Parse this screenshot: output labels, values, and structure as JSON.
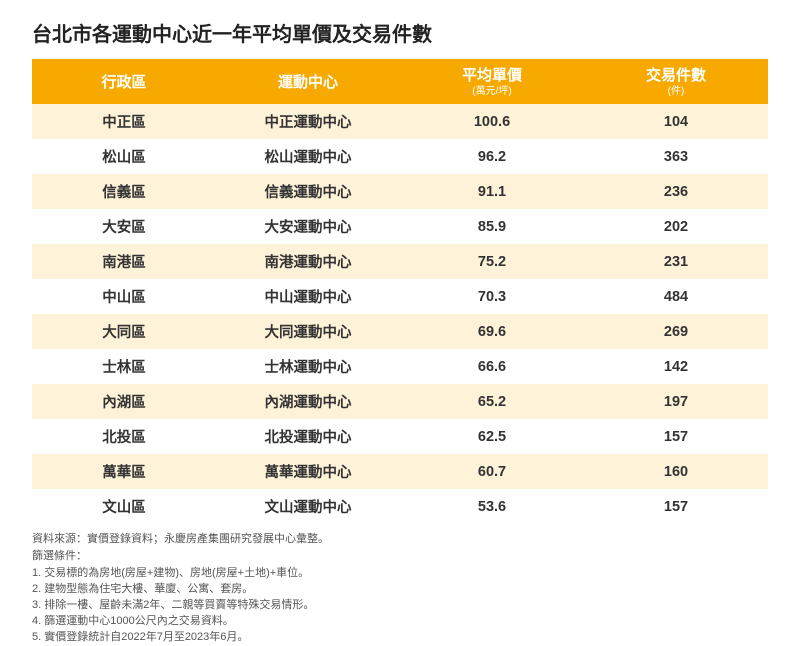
{
  "title": "台北市各運動中心近一年平均單價及交易件數",
  "table": {
    "header_bg": "#f7a900",
    "header_fg": "#ffffff",
    "row_odd_bg": "#fef2d9",
    "row_even_bg": "#ffffff",
    "text_color": "#333333",
    "columns": [
      {
        "label": "行政區",
        "sub": ""
      },
      {
        "label": "運動中心",
        "sub": ""
      },
      {
        "label": "平均單價",
        "sub": "(萬元/坪)"
      },
      {
        "label": "交易件數",
        "sub": "(件)"
      }
    ],
    "rows": [
      [
        "中正區",
        "中正運動中心",
        "100.6",
        "104"
      ],
      [
        "松山區",
        "松山運動中心",
        "96.2",
        "363"
      ],
      [
        "信義區",
        "信義運動中心",
        "91.1",
        "236"
      ],
      [
        "大安區",
        "大安運動中心",
        "85.9",
        "202"
      ],
      [
        "南港區",
        "南港運動中心",
        "75.2",
        "231"
      ],
      [
        "中山區",
        "中山運動中心",
        "70.3",
        "484"
      ],
      [
        "大同區",
        "大同運動中心",
        "69.6",
        "269"
      ],
      [
        "士林區",
        "士林運動中心",
        "66.6",
        "142"
      ],
      [
        "內湖區",
        "內湖運動中心",
        "65.2",
        "197"
      ],
      [
        "北投區",
        "北投運動中心",
        "62.5",
        "157"
      ],
      [
        "萬華區",
        "萬華運動中心",
        "60.7",
        "160"
      ],
      [
        "文山區",
        "文山運動中心",
        "53.6",
        "157"
      ]
    ]
  },
  "footer": {
    "source": "資料來源：實價登錄資料；永慶房產集團研究發展中心彙整。",
    "conditions_header": "篩選條件：",
    "conditions": [
      "1. 交易標的為房地(房屋+建物)、房地(房屋+土地)+車位。",
      "2. 建物型態為住宅大樓、華廈、公寓、套房。",
      "3. 排除一樓、屋齡未滿2年、二親等買賣等特殊交易情形。",
      "4. 篩選運動中心1000公尺內之交易資料。",
      "5. 實價登錄統計自2022年7月至2023年6月。"
    ]
  }
}
